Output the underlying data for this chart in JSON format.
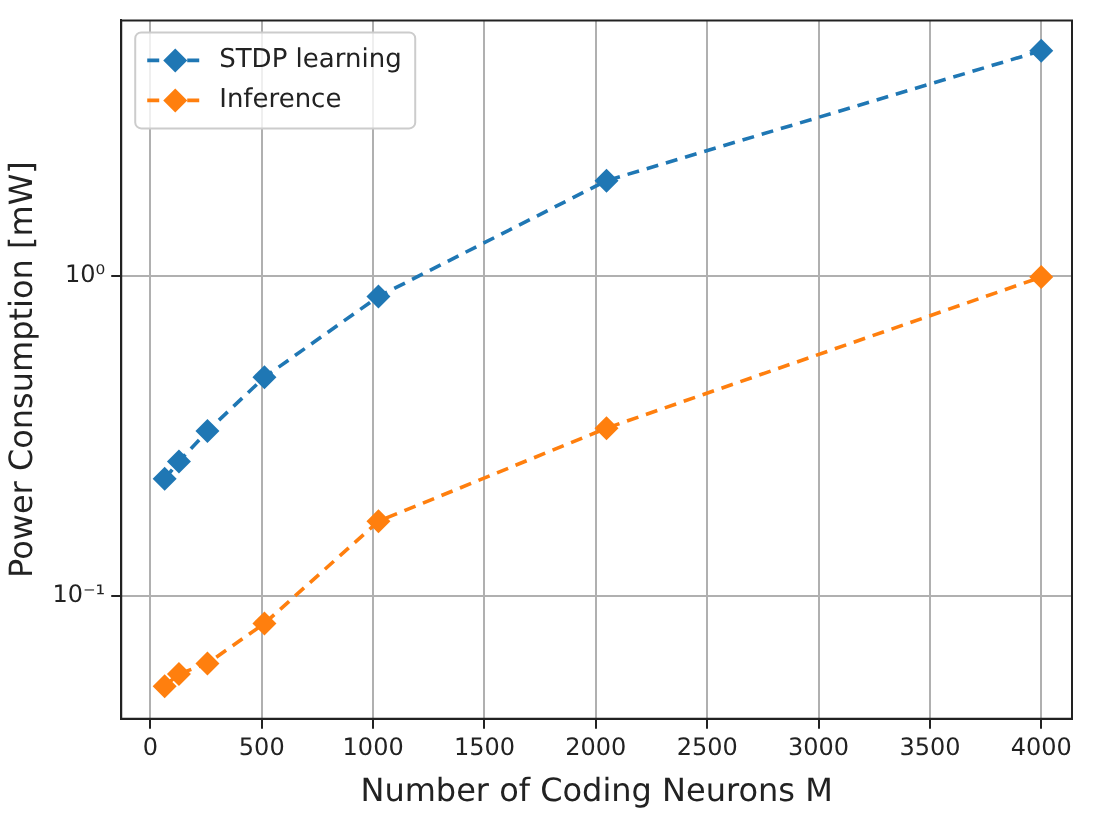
{
  "chart_data": {
    "type": "line",
    "xlabel": "Number of Coding Neurons M",
    "ylabel": "Power Consumption [mW]",
    "x": [
      64,
      128,
      256,
      512,
      1024,
      2048,
      4000
    ],
    "series": [
      {
        "name": "STDP learning",
        "color": "#1f77b4",
        "values": [
          0.232,
          0.263,
          0.327,
          0.482,
          0.861,
          1.98,
          5.04
        ]
      },
      {
        "name": "Inference",
        "color": "#ff7f0e",
        "values": [
          0.0522,
          0.057,
          0.0615,
          0.082,
          0.171,
          0.334,
          0.99
        ]
      }
    ],
    "xlim": [
      -131,
      4138
    ],
    "xticks": [
      0,
      500,
      1000,
      1500,
      2000,
      2500,
      3000,
      3500,
      4000
    ],
    "ylim": [
      0.0413,
      6.27
    ],
    "yticks": [
      {
        "value": 0.1,
        "label": "10⁻¹"
      },
      {
        "value": 1,
        "label": "10⁰"
      }
    ],
    "log": "y",
    "grid": true,
    "legend": "top left",
    "marker": "diamond",
    "line_style": "dashed"
  }
}
